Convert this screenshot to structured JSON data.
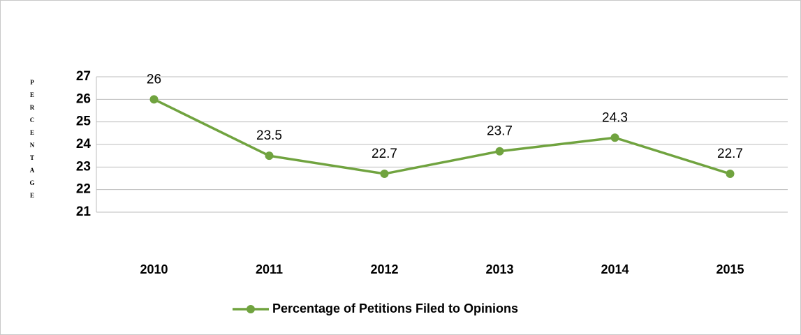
{
  "chart_data": {
    "type": "line",
    "y_label": "PERCENTAGE",
    "categories": [
      "2010",
      "2011",
      "2012",
      "2013",
      "2014",
      "2015"
    ],
    "series": [
      {
        "name": "Percentage of Petitions Filed to Opinions",
        "color": "#70a33f",
        "values": [
          26,
          23.5,
          22.7,
          23.7,
          24.3,
          22.7
        ]
      }
    ],
    "ylim": [
      21,
      27
    ],
    "yticks": [
      21,
      22,
      23,
      24,
      25,
      26,
      27
    ],
    "grid": true,
    "legend": "bottom"
  }
}
